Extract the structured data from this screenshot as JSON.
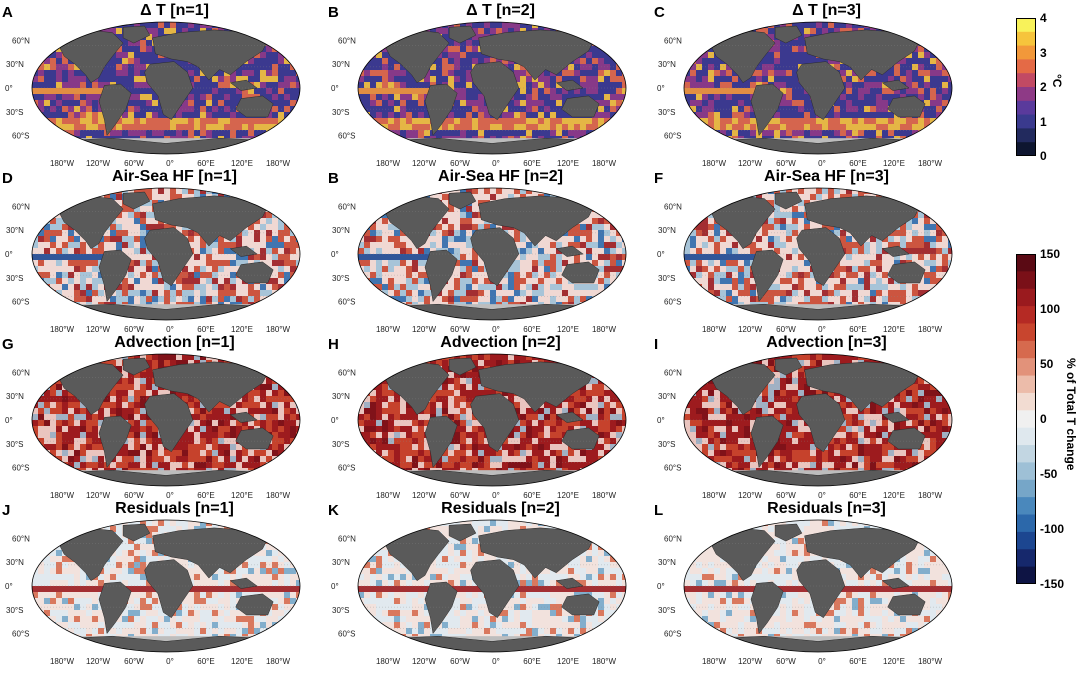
{
  "panels": [
    {
      "letter": "A",
      "title": "Δ T [n=1]",
      "field": "dt"
    },
    {
      "letter": "B",
      "title": "Δ T [n=2]",
      "field": "dt"
    },
    {
      "letter": "C",
      "title": "Δ T [n=3]",
      "field": "dt"
    },
    {
      "letter": "D",
      "title": "Air-Sea HF [n=1]",
      "field": "hf"
    },
    {
      "letter": "B",
      "title": "Air-Sea HF [n=2]",
      "field": "hf"
    },
    {
      "letter": "F",
      "title": "Air-Sea HF [n=3]",
      "field": "hf"
    },
    {
      "letter": "G",
      "title": "Advection [n=1]",
      "field": "adv"
    },
    {
      "letter": "H",
      "title": "Advection [n=2]",
      "field": "adv"
    },
    {
      "letter": "I",
      "title": "Advection [n=3]",
      "field": "adv"
    },
    {
      "letter": "J",
      "title": "Residuals [n=1]",
      "field": "res"
    },
    {
      "letter": "K",
      "title": "Residuals [n=2]",
      "field": "res"
    },
    {
      "letter": "L",
      "title": "Residuals [n=3]",
      "field": "res"
    }
  ],
  "lat_labels": [
    "60°N",
    "30°N",
    "0°",
    "30°S",
    "60°S"
  ],
  "lon_labels": [
    "180°W",
    "120°W",
    "60°W",
    "0°",
    "60°E",
    "120°E",
    "180°W"
  ],
  "colorbar_temp": {
    "unit": "°C",
    "ticks": [
      "4",
      "3",
      "2",
      "1",
      "0"
    ],
    "colors": [
      "#f8f25a",
      "#f6c43c",
      "#f2983a",
      "#e46a46",
      "#c24a64",
      "#8e3a86",
      "#5a3a9c",
      "#3a3a8e",
      "#222a5e",
      "#0e1630"
    ]
  },
  "colorbar_pct": {
    "label": "% of Total T change",
    "ticks": [
      "150",
      "100",
      "50",
      "0",
      "-50",
      "-100",
      "-150"
    ],
    "colors": [
      "#5a0a14",
      "#7a1018",
      "#9a1a1e",
      "#b52a24",
      "#c8452e",
      "#d66a4e",
      "#e2927a",
      "#ecbcaa",
      "#f2dcd2",
      "#f0f0f0",
      "#dfe8ee",
      "#c2d6e2",
      "#9ec0d6",
      "#76a6c8",
      "#4a88bc",
      "#2c68aa",
      "#1c4690",
      "#16286c",
      "#0e1444"
    ]
  }
}
